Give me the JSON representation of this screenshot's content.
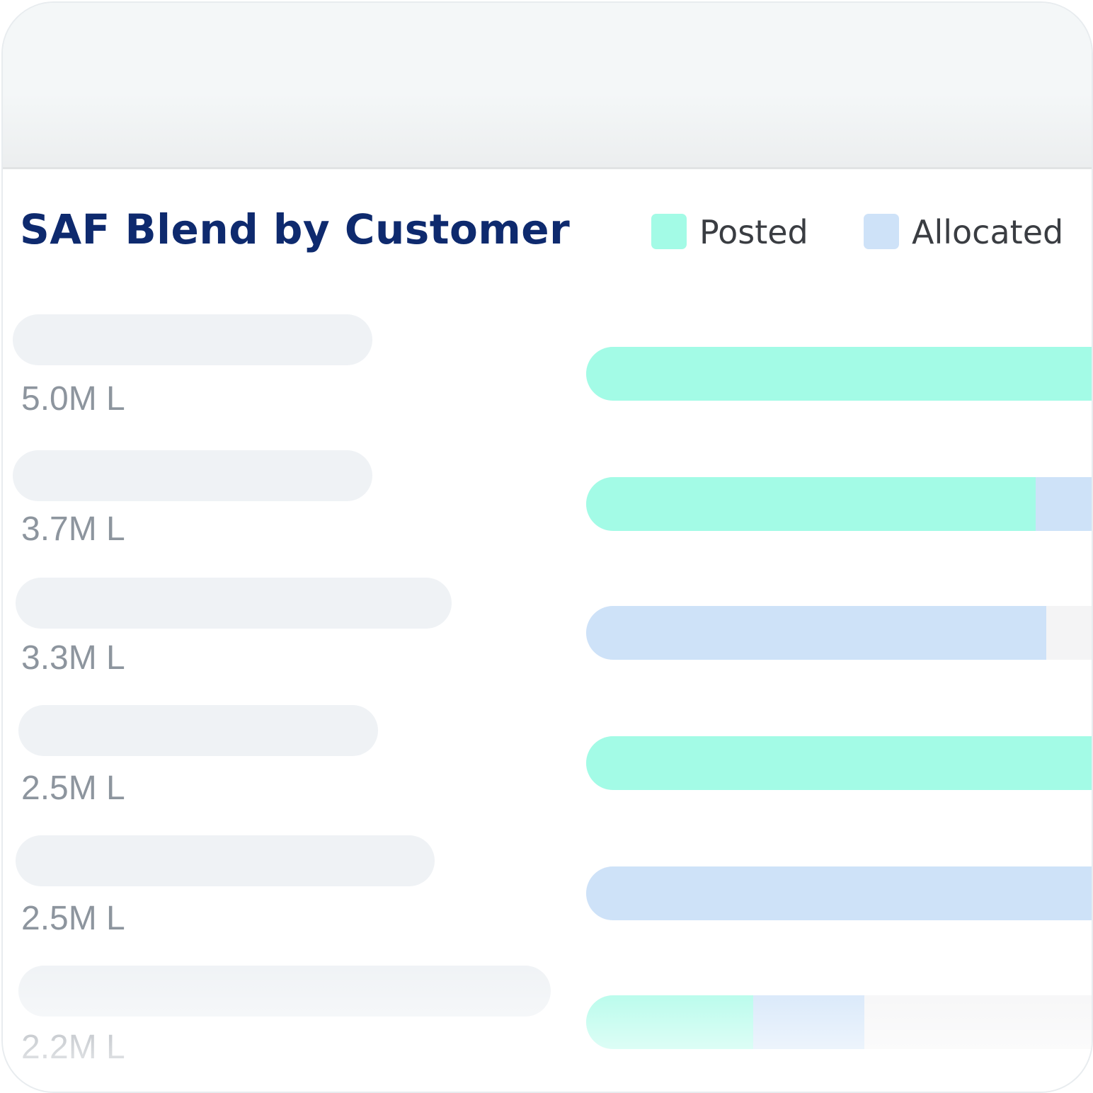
{
  "title": "SAF Blend by Customer",
  "legend": [
    {
      "label": "Posted",
      "color": "#a3fbe6"
    },
    {
      "label": "Allocated",
      "color": "#cee2f8"
    }
  ],
  "colors": {
    "posted": "#a3fbe6",
    "allocated": "#cee2f8",
    "track": "#f4f4f5",
    "title": "#0e2a6e"
  },
  "chart_data": {
    "type": "bar",
    "orientation": "horizontal",
    "stacked": true,
    "title": "SAF Blend by Customer",
    "rows": [
      {
        "total_label": "5.0M L",
        "total": 5.0,
        "posted_fraction": 1.0,
        "allocated_fraction": 0.0
      },
      {
        "total_label": "3.7M L",
        "total": 3.7,
        "posted_fraction": 0.89,
        "allocated_fraction": 0.11
      },
      {
        "total_label": "3.3M L",
        "total": 3.3,
        "posted_fraction": 0.0,
        "allocated_fraction": 0.91
      },
      {
        "total_label": "2.5M L",
        "total": 2.5,
        "posted_fraction": 1.0,
        "allocated_fraction": 0.0
      },
      {
        "total_label": "2.5M L",
        "total": 2.5,
        "posted_fraction": 0.0,
        "allocated_fraction": 1.0
      },
      {
        "total_label": "2.2M L",
        "total": 2.2,
        "posted_fraction": 0.33,
        "allocated_fraction": 0.22
      }
    ],
    "unit": "M L",
    "legend_position": "top-right"
  }
}
